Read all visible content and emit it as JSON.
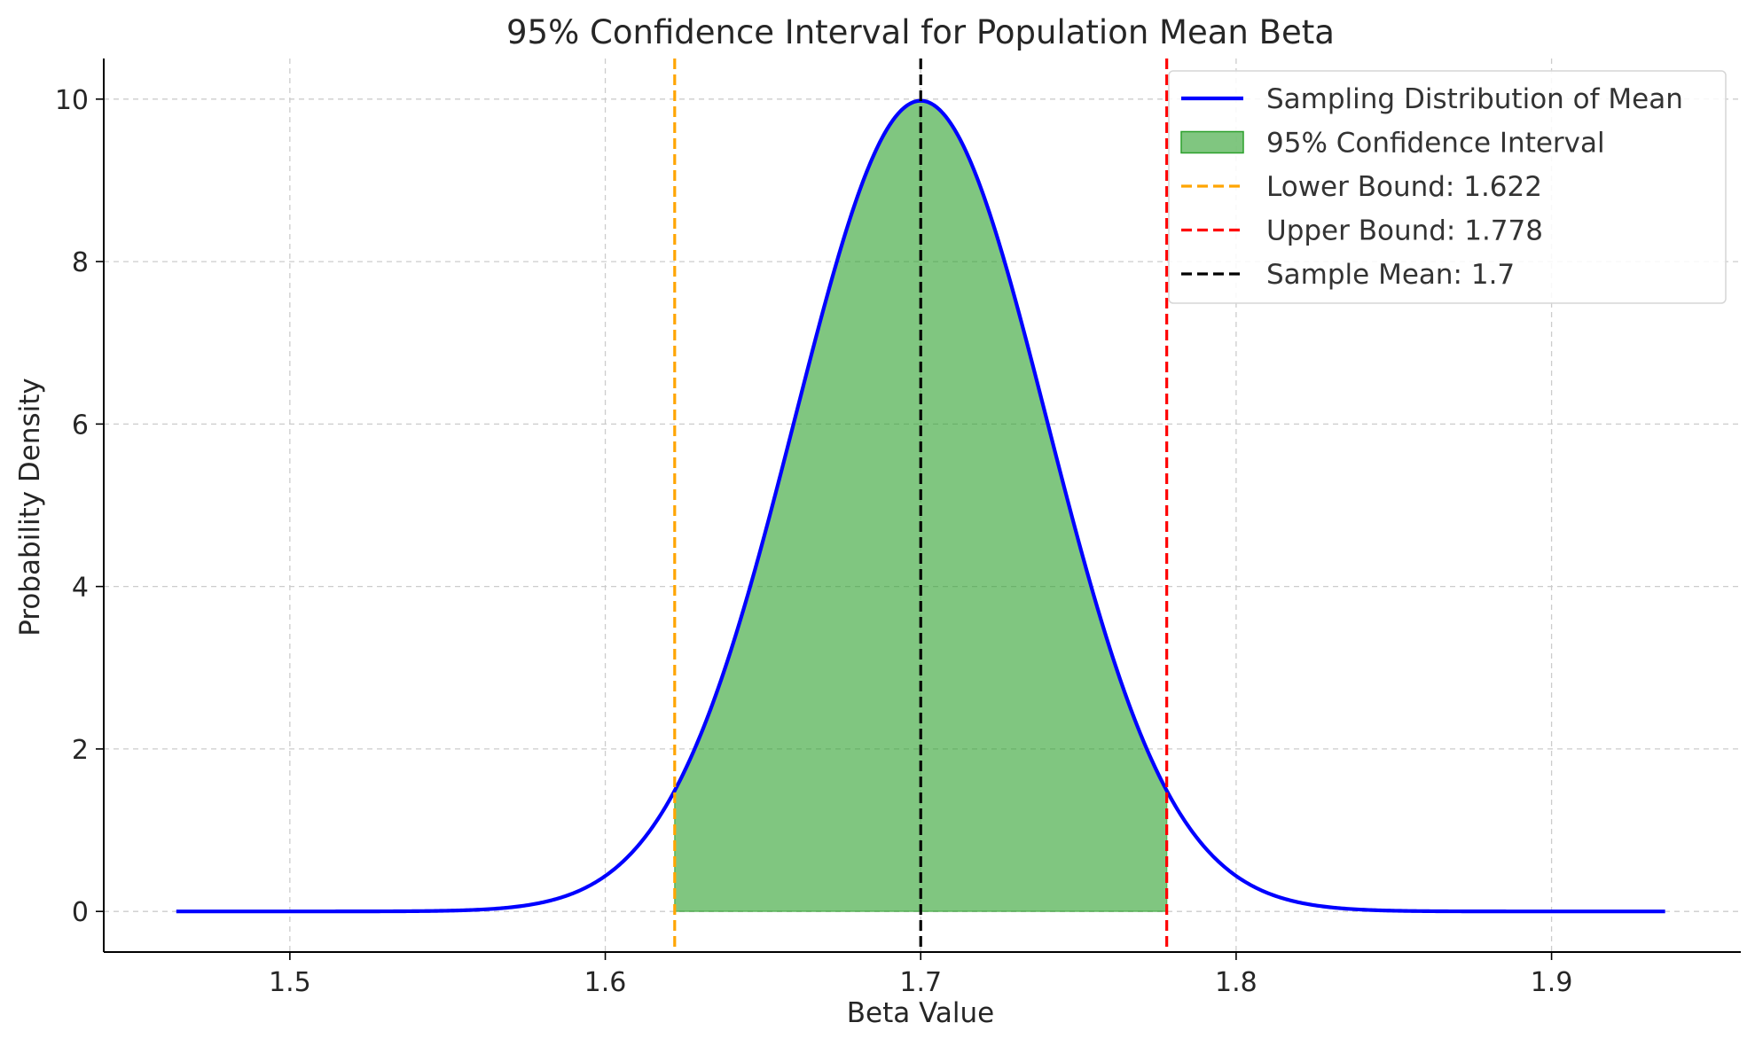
{
  "chart_data": {
    "type": "line",
    "title": "95% Confidence Interval for Population Mean Beta",
    "xlabel": "Beta Value",
    "ylabel": "Probability Density",
    "xlim": [
      1.441,
      1.96
    ],
    "ylim": [
      -0.5,
      10.5
    ],
    "xticks": [
      {
        "value": 1.5,
        "label": "1.5"
      },
      {
        "value": 1.6,
        "label": "1.6"
      },
      {
        "value": 1.7,
        "label": "1.7"
      },
      {
        "value": 1.8,
        "label": "1.8"
      },
      {
        "value": 1.9,
        "label": "1.9"
      }
    ],
    "yticks": [
      {
        "value": 0,
        "label": "0"
      },
      {
        "value": 2,
        "label": "2"
      },
      {
        "value": 4,
        "label": "4"
      },
      {
        "value": 6,
        "label": "6"
      },
      {
        "value": 8,
        "label": "8"
      },
      {
        "value": 10,
        "label": "10"
      }
    ],
    "grid": true,
    "legend_position": "top-right",
    "series": [
      {
        "name": "Sampling Distribution of Mean",
        "kind": "line",
        "color": "#0000ff",
        "x": [
          1.464,
          1.48,
          1.5,
          1.52,
          1.54,
          1.56,
          1.57,
          1.58,
          1.59,
          1.6,
          1.61,
          1.62,
          1.63,
          1.64,
          1.65,
          1.66,
          1.67,
          1.68,
          1.69,
          1.7,
          1.71,
          1.72,
          1.73,
          1.74,
          1.75,
          1.76,
          1.77,
          1.78,
          1.79,
          1.8,
          1.81,
          1.82,
          1.83,
          1.84,
          1.86,
          1.88,
          1.9,
          1.92,
          1.936
        ],
        "values": [
          0.0,
          0.0,
          0.0,
          0.0,
          0.01,
          0.05,
          0.1,
          0.21,
          0.38,
          0.65,
          1.04,
          1.53,
          2.12,
          2.81,
          3.94,
          5.33,
          6.73,
          8.13,
          9.53,
          9.98,
          9.53,
          8.13,
          6.73,
          5.33,
          3.94,
          2.81,
          2.12,
          1.5,
          1.04,
          0.65,
          0.38,
          0.21,
          0.1,
          0.05,
          0.01,
          0.0,
          0.0,
          0.0,
          0.0
        ]
      },
      {
        "name": "95% Confidence Interval",
        "kind": "area",
        "color": "#2ca02c",
        "x_range": [
          1.622,
          1.778
        ]
      },
      {
        "name": "Lower Bound: 1.622",
        "kind": "vline",
        "color": "#ffa500",
        "x": 1.622
      },
      {
        "name": "Upper Bound: 1.778",
        "kind": "vline",
        "color": "#ff0000",
        "x": 1.778
      },
      {
        "name": "Sample Mean: 1.7",
        "kind": "vline",
        "color": "#000000",
        "x": 1.7
      }
    ]
  }
}
